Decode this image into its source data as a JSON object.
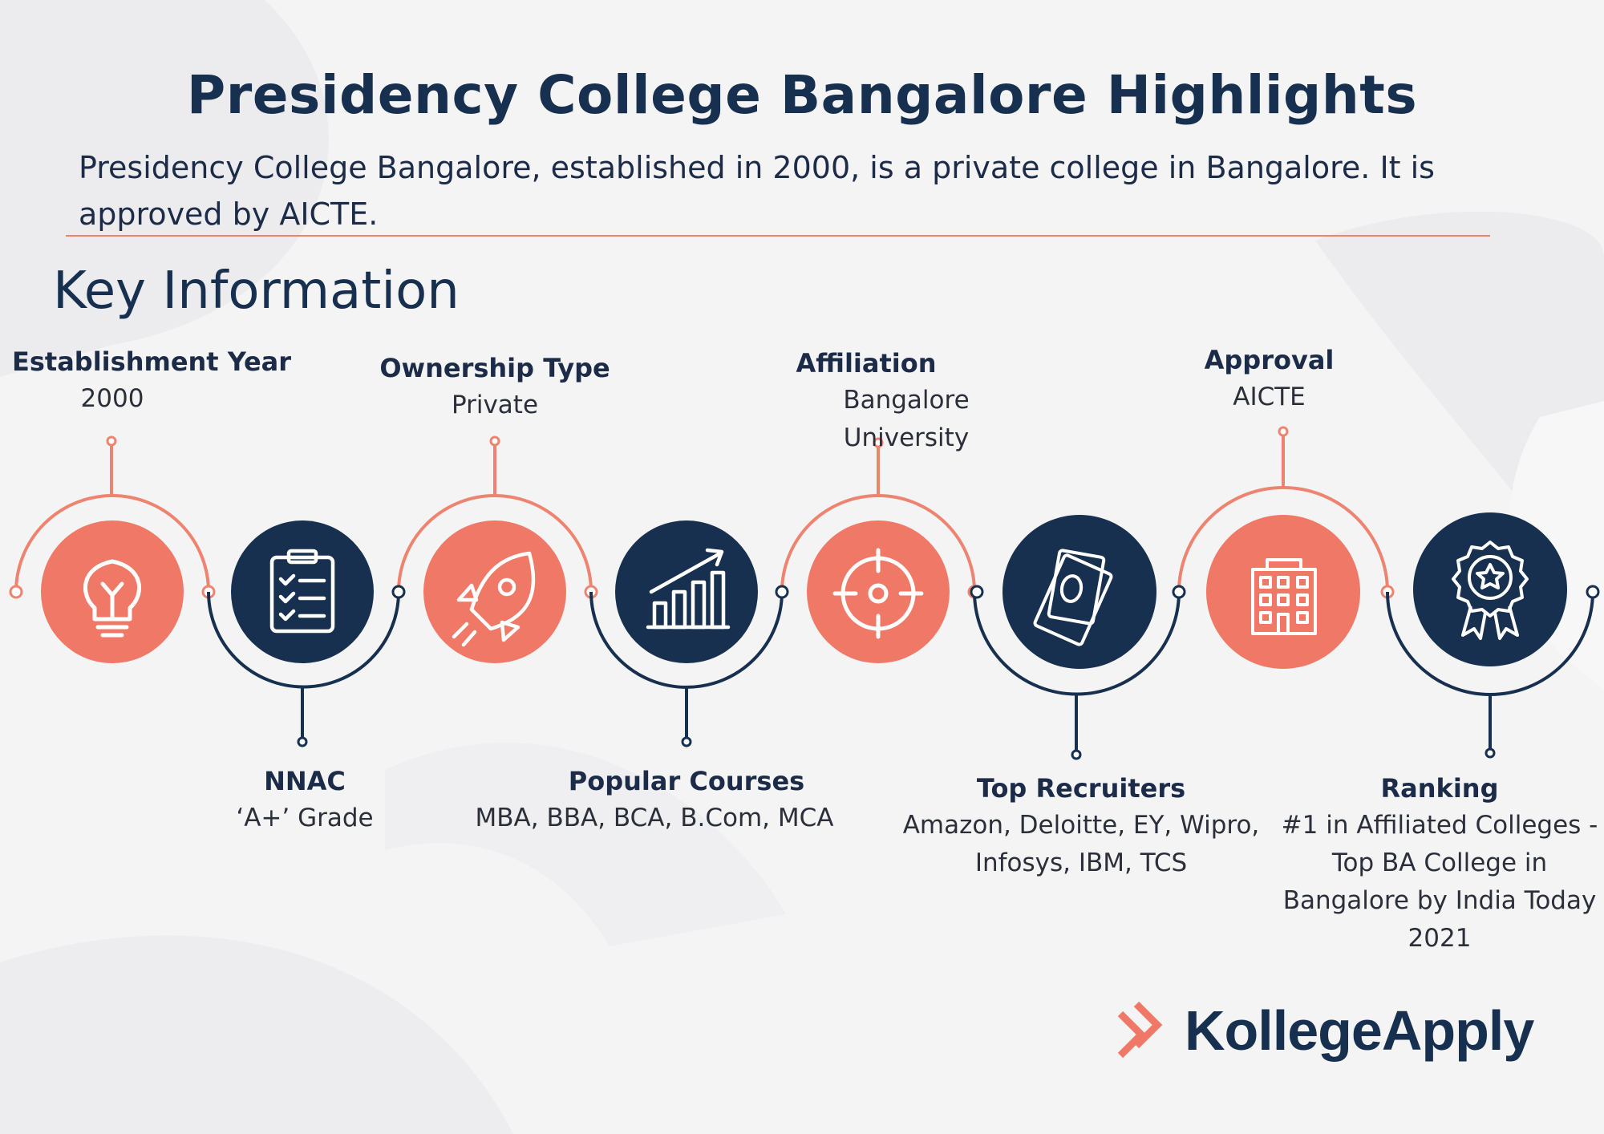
{
  "header": {
    "title": "Presidency College Bangalore Highlights",
    "intro": "Presidency College Bangalore, established in 2000, is a private college in Bangalore. It is approved by AICTE."
  },
  "section": {
    "heading": "Key Information"
  },
  "colors": {
    "coral": "#f07866",
    "navy": "#17304f",
    "accent_line": "#ee8470"
  },
  "items": [
    {
      "label": "Establishment Year",
      "value": "2000",
      "icon": "lightbulb-icon",
      "color": "coral"
    },
    {
      "label": "NNAC",
      "value": "‘A+’ Grade",
      "icon": "checklist-icon",
      "color": "navy"
    },
    {
      "label": "Ownership Type",
      "value": "Private",
      "icon": "rocket-icon",
      "color": "coral"
    },
    {
      "label": "Popular Courses",
      "value": "MBA, BBA, BCA, B.Com, MCA",
      "icon": "growth-chart-icon",
      "color": "navy"
    },
    {
      "label": "Affiliation",
      "value": "Bangalore University",
      "icon": "target-icon",
      "color": "coral"
    },
    {
      "label": "Top Recruiters",
      "value": "Amazon, Deloitte, EY, Wipro, Infosys, IBM, TCS",
      "icon": "money-icon",
      "color": "navy"
    },
    {
      "label": "Approval",
      "value": "AICTE",
      "icon": "building-icon",
      "color": "coral"
    },
    {
      "label": "Ranking",
      "value": "#1 in Affiliated Colleges - Top BA College in Bangalore by India Today 2021",
      "icon": "award-badge-icon",
      "color": "navy"
    }
  ],
  "brand": {
    "name": "KollegeApply",
    "logo_icon": "kollegeapply-chevron-logo"
  }
}
